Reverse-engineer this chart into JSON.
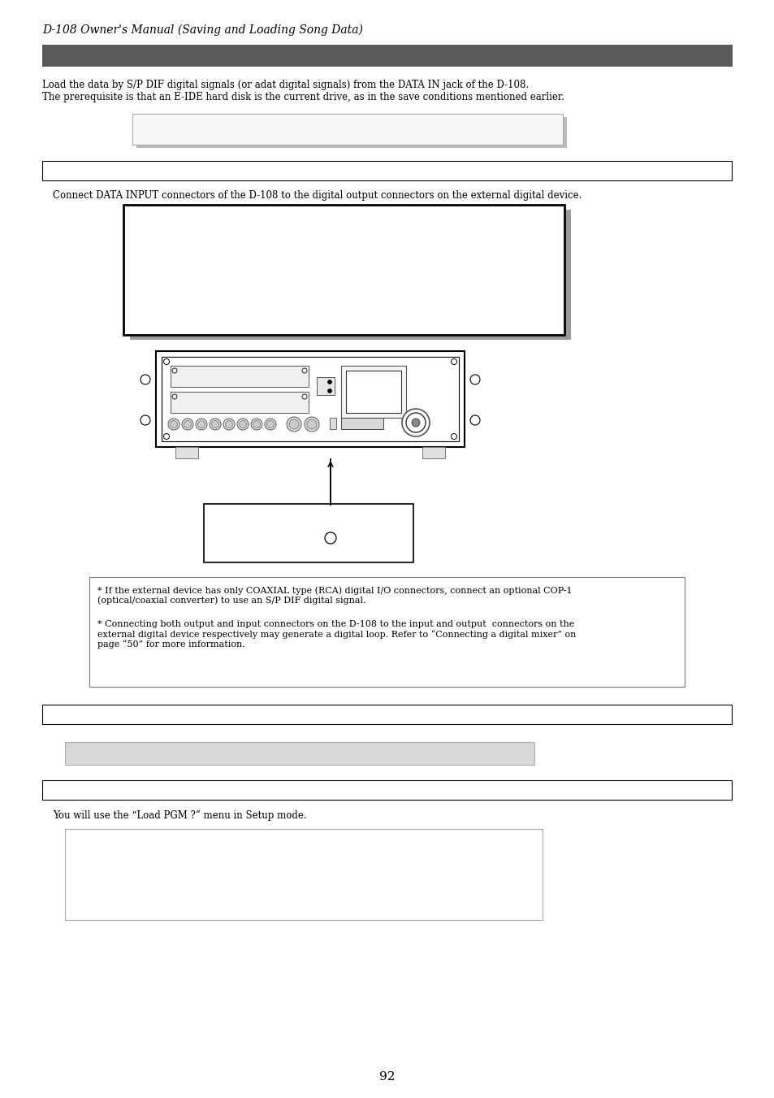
{
  "title": "D-108 Owner's Manual (Saving and Loading Song Data)",
  "section1_text1": "Load the data by S/P DIF digital signals (or adat digital signals) from the DATA IN jack of the D-108.",
  "section1_text2": "The prerequisite is that an E-IDE hard disk is the current drive, as in the save conditions mentioned earlier.",
  "step1_instruction": "Connect DATA INPUT connectors of the D-108 to the digital output connectors on the external digital device.",
  "note1": "* If the external device has only COAXIAL type (RCA) digital I/O connectors, connect an optional COP-1\n(optical/coaxial converter) to use an S/P DIF digital signal.",
  "note2": "* Connecting both output and input connectors on the D-108 to the input and output  connectors on the\nexternal digital device respectively may generate a digital loop. Refer to “Connecting a digital mixer” on\npage “50” for more information.",
  "step3_instruction": "You will use the “Load PGM ?” menu in Setup mode.",
  "page_number": "92",
  "bg_color": "#ffffff",
  "dark_bar_color": "#595959",
  "note_border": "#888888"
}
